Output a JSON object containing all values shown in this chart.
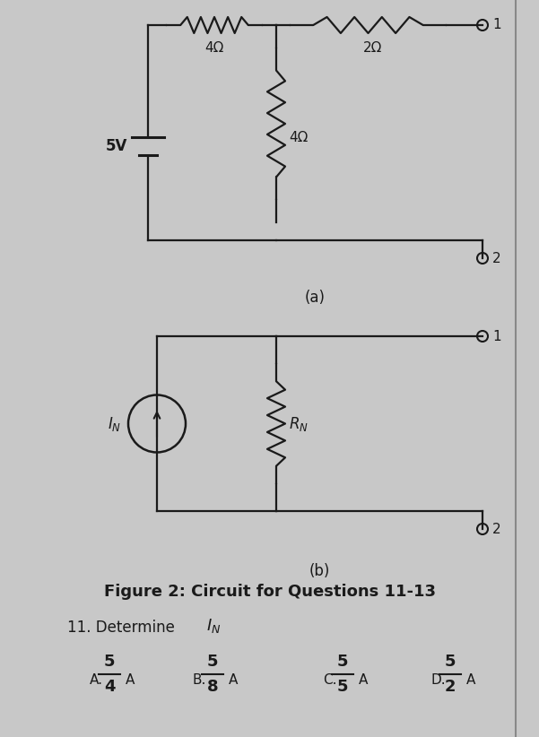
{
  "bg_color": "#c8c8c8",
  "paper_color": "#e8e6e0",
  "fig_width": 6.01,
  "fig_height": 8.22,
  "title": "Figure 2: Circuit for Questions 11-13",
  "answers": [
    {
      "label": "A.",
      "num": "5",
      "den": "4",
      "unit": "A"
    },
    {
      "label": "B.",
      "num": "5",
      "den": "8",
      "unit": "A"
    },
    {
      "label": "C.",
      "num": "5",
      "den": "5",
      "unit": "A"
    },
    {
      "label": "D.",
      "num": "5",
      "den": "2",
      "unit": "A"
    }
  ],
  "circuit_a_label": "(a)",
  "circuit_b_label": "(b)",
  "line_color": "#1a1a1a"
}
